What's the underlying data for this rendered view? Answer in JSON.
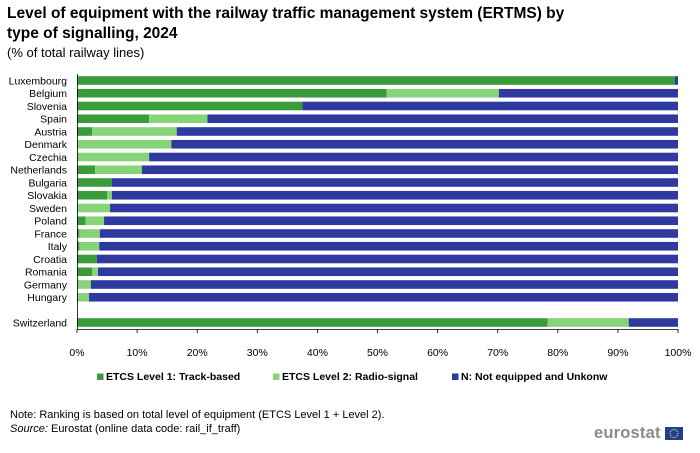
{
  "title": "Level of equipment with the railway traffic management system (ERTMS) by type of signalling, 2024",
  "subtitle": "(% of total railway lines)",
  "note": "Note: Ranking is based on total level of equipment (ETCS Level 1 + Level 2).",
  "source_label": "Source:",
  "source_text": " Eurostat (online data code: rail_if_traff)",
  "logo_text": "eurostat",
  "colors": {
    "level1": "#3a9b3a",
    "level2": "#86d477",
    "none": "#2e3a9e",
    "flag": "#1f3f9a",
    "stars": "#ffd617"
  },
  "chart_data": {
    "type": "bar",
    "orientation": "horizontal",
    "stacked": true,
    "categories": [
      "Luxembourg",
      "Belgium",
      "Slovenia",
      "Spain",
      "Austria",
      "Denmark",
      "Czechia",
      "Netherlands",
      "Bulgaria",
      "Slovakia",
      "Sweden",
      "Poland",
      "France",
      "Italy",
      "Croatia",
      "Romania",
      "Germany",
      "Hungary",
      "Switzerland"
    ],
    "gap_before": [
      "Switzerland"
    ],
    "series": [
      {
        "name": "ETCS Level 1: Track-based",
        "color": "#3a9b3a",
        "values": [
          99.5,
          51.5,
          37.5,
          12.0,
          2.5,
          0.0,
          0.0,
          3.0,
          5.8,
          5.0,
          0.0,
          1.4,
          0.4,
          0.4,
          3.3,
          2.5,
          0.0,
          0.0,
          78.3
        ]
      },
      {
        "name": "ETCS Level 2: Radio-signal",
        "color": "#86d477",
        "values": [
          0.0,
          18.7,
          0.0,
          9.7,
          14.1,
          15.7,
          12.0,
          7.8,
          0.0,
          0.8,
          5.5,
          3.1,
          3.4,
          3.3,
          0.0,
          1.0,
          2.3,
          2.0,
          13.5
        ]
      },
      {
        "name": "N: Not equipped and Unkonw",
        "color": "#2e3a9e",
        "values": [
          0.5,
          29.8,
          62.5,
          78.3,
          83.4,
          84.3,
          88.0,
          89.2,
          94.2,
          94.2,
          94.5,
          95.5,
          96.2,
          96.3,
          96.7,
          96.5,
          97.7,
          98.0,
          8.2
        ]
      }
    ],
    "xlim": [
      0,
      100
    ],
    "xticks": [
      "0%",
      "10%",
      "20%",
      "30%",
      "40%",
      "50%",
      "60%",
      "70%",
      "80%",
      "90%",
      "100%"
    ],
    "grid": false,
    "legend_position": "bottom"
  }
}
